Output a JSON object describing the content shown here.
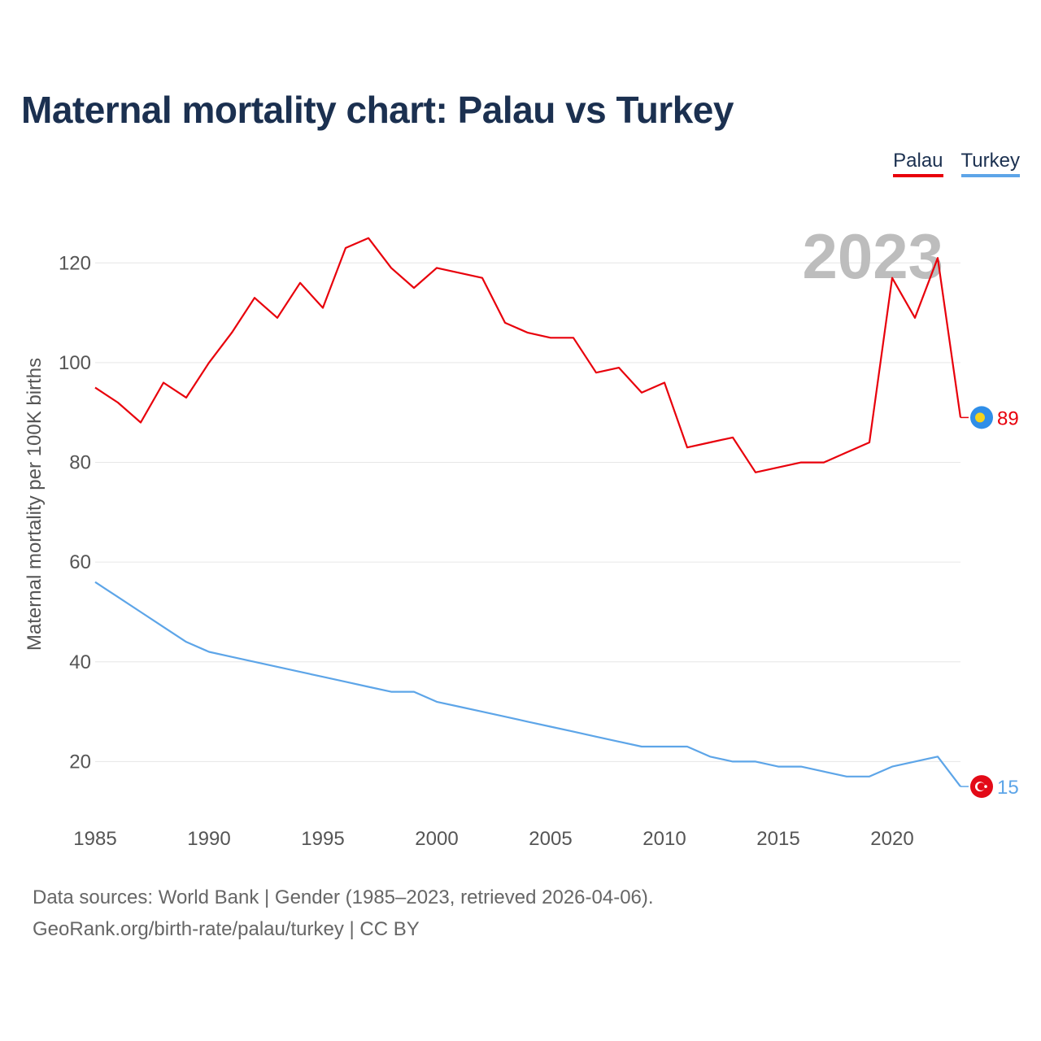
{
  "page": {
    "title": "Maternal mortality chart: Palau vs Turkey",
    "footer_line1": "Data sources: World Bank | Gender (1985–2023, retrieved 2026-04-06).",
    "footer_line2": "GeoRank.org/birth-rate/palau/turkey | CC BY"
  },
  "chart_data": {
    "type": "line",
    "title": "Maternal mortality chart: Palau vs Turkey",
    "xlabel": "",
    "ylabel": "Maternal mortality per 100K births",
    "year_label": "2023",
    "xlim": [
      1985,
      2023
    ],
    "ylim": [
      8,
      130
    ],
    "x_ticks": [
      1985,
      1990,
      1995,
      2000,
      2005,
      2010,
      2015,
      2020
    ],
    "y_ticks": [
      20,
      40,
      60,
      80,
      100,
      120
    ],
    "grid": true,
    "legend_position": "top-right",
    "x": [
      1985,
      1986,
      1987,
      1988,
      1989,
      1990,
      1991,
      1992,
      1993,
      1994,
      1995,
      1996,
      1997,
      1998,
      1999,
      2000,
      2001,
      2002,
      2003,
      2004,
      2005,
      2006,
      2007,
      2008,
      2009,
      2010,
      2011,
      2012,
      2013,
      2014,
      2015,
      2016,
      2017,
      2018,
      2019,
      2020,
      2021,
      2022,
      2023
    ],
    "series": [
      {
        "name": "Palau",
        "color": "#e8000b",
        "flag_icon": "palau-flag-icon",
        "end_label": "89",
        "values": [
          95,
          92,
          88,
          96,
          93,
          100,
          106,
          113,
          109,
          116,
          111,
          123,
          125,
          119,
          115,
          119,
          118,
          117,
          108,
          106,
          105,
          105,
          98,
          99,
          94,
          96,
          83,
          84,
          85,
          78,
          79,
          80,
          80,
          82,
          84,
          117,
          109,
          121,
          89
        ]
      },
      {
        "name": "Turkey",
        "color": "#5da5e8",
        "flag_icon": "turkey-flag-icon",
        "end_label": "15",
        "values": [
          56,
          53,
          50,
          47,
          44,
          42,
          41,
          40,
          39,
          38,
          37,
          36,
          35,
          34,
          34,
          32,
          31,
          30,
          29,
          28,
          27,
          26,
          25,
          24,
          23,
          23,
          23,
          21,
          20,
          20,
          19,
          19,
          18,
          17,
          17,
          19,
          20,
          21,
          15
        ]
      }
    ]
  }
}
